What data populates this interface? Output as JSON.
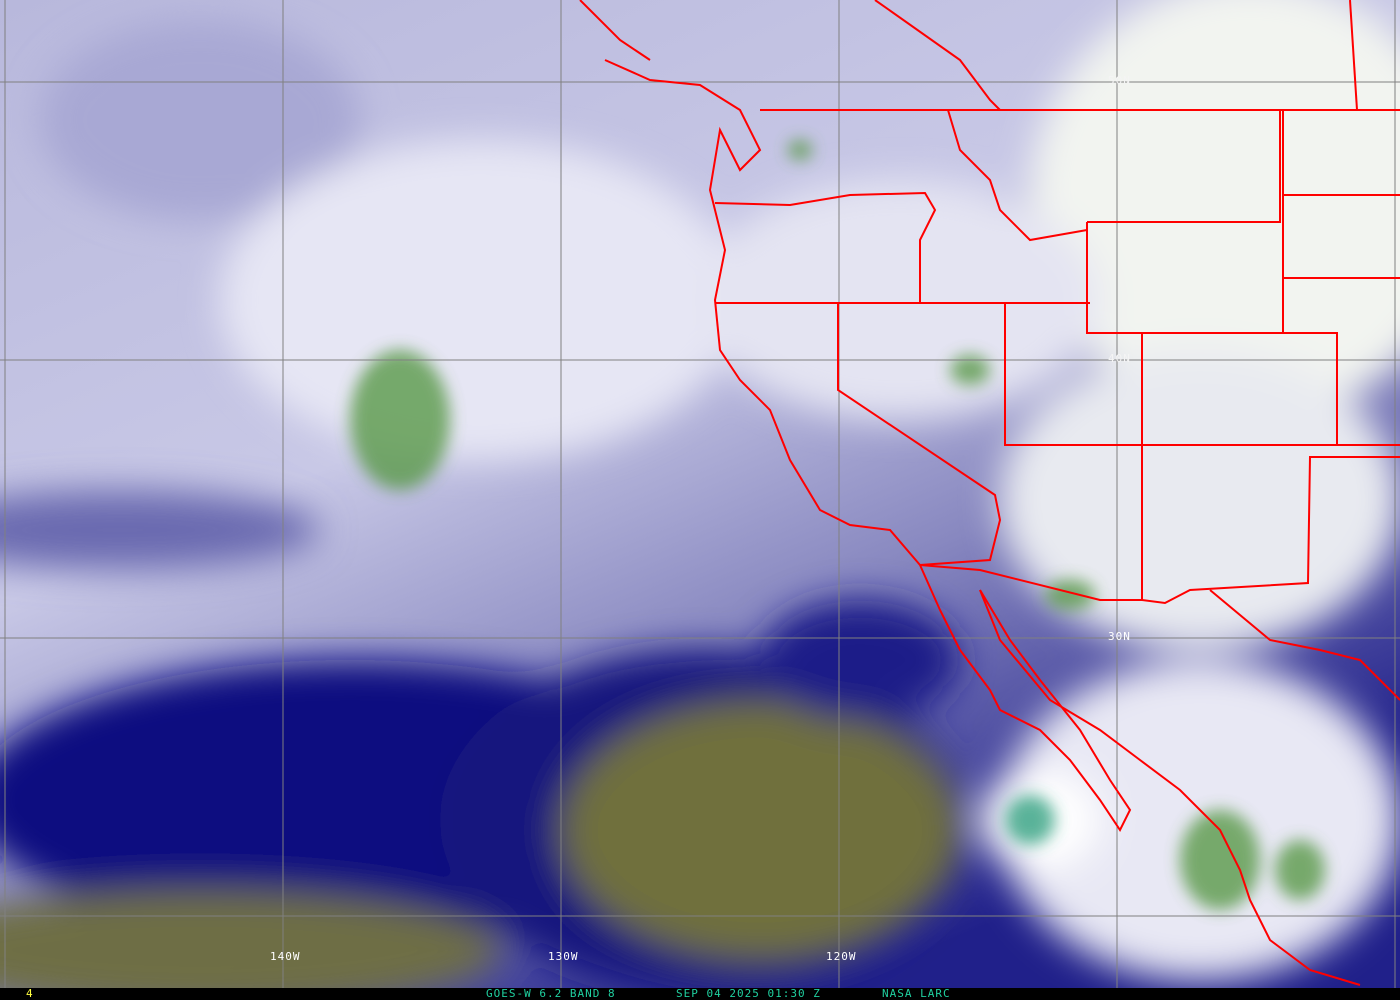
{
  "image": {
    "satellite_caption": "GOES-W 6.2 BAND 8",
    "datetime": "SEP 04 2025 01:30 Z",
    "source": "NASA LARC",
    "frame_number": "4"
  },
  "grid_labels": {
    "lon": [
      "140W",
      "130W",
      "120W"
    ],
    "lat": [
      "30N",
      "40N",
      "50N"
    ]
  },
  "colors": {
    "border": "#ff0000",
    "grid": "#808080",
    "caption": "#20d0a0",
    "frame_number": "#ffff40",
    "moist": "#ffffff",
    "mid": "#a0a0d0",
    "dry": "#1a1a80",
    "very_dry": "#6a6a40",
    "cold_cloud": "#4a8a40"
  }
}
